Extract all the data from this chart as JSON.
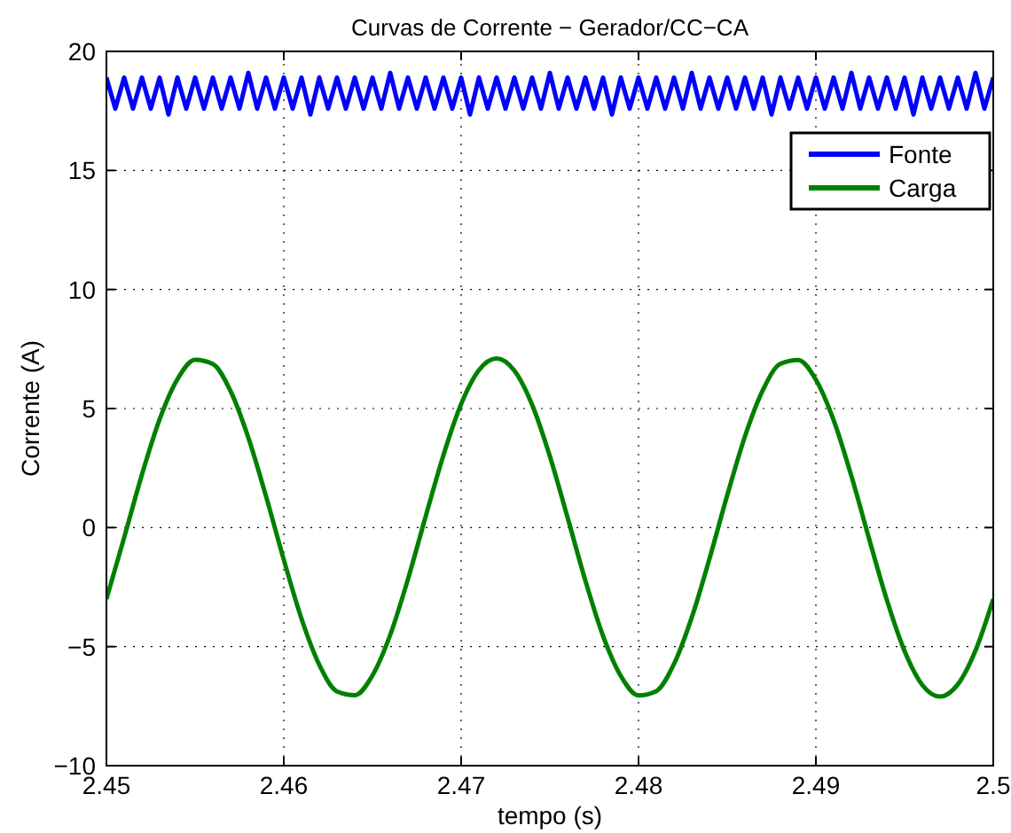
{
  "chart_data": {
    "type": "line",
    "title": "Curvas de Corrente − Gerador/CC−CA",
    "xlabel": "tempo (s)",
    "ylabel": "Corrente (A)",
    "xlim": [
      2.45,
      2.5
    ],
    "xticks": [
      2.45,
      2.46,
      2.47,
      2.48,
      2.49,
      2.5
    ],
    "ylim": [
      -10,
      20
    ],
    "yticks": [
      -10,
      -5,
      0,
      5,
      10,
      15,
      20
    ],
    "grid": true,
    "legend": "top right",
    "series": [
      {
        "name": "Fonte",
        "color": "#0000ff",
        "x": [
          2.45,
          2.4505,
          2.451,
          2.4515,
          2.452,
          2.4525,
          2.453,
          2.4535,
          2.454,
          2.4545,
          2.455,
          2.4555,
          2.456,
          2.4565,
          2.457,
          2.4575,
          2.458,
          2.4585,
          2.459,
          2.4595,
          2.46,
          2.4605,
          2.461,
          2.4615,
          2.462,
          2.4625,
          2.463,
          2.4635,
          2.464,
          2.4645,
          2.465,
          2.4655,
          2.466,
          2.4665,
          2.467,
          2.4675,
          2.468,
          2.4685,
          2.469,
          2.4695,
          2.47,
          2.4705,
          2.471,
          2.4715,
          2.472,
          2.4725,
          2.473,
          2.4735,
          2.474,
          2.4745,
          2.475,
          2.4755,
          2.476,
          2.4765,
          2.477,
          2.4775,
          2.478,
          2.4785,
          2.479,
          2.4795,
          2.48,
          2.4805,
          2.481,
          2.4815,
          2.482,
          2.4825,
          2.483,
          2.4835,
          2.484,
          2.4845,
          2.485,
          2.4855,
          2.486,
          2.4865,
          2.487,
          2.4875,
          2.488,
          2.4885,
          2.489,
          2.4895,
          2.49,
          2.4905,
          2.491,
          2.4915,
          2.492,
          2.4925,
          2.493,
          2.4935,
          2.494,
          2.4945,
          2.495,
          2.4955,
          2.496,
          2.4965,
          2.497,
          2.4975,
          2.498,
          2.4985,
          2.499,
          2.4995,
          2.5
        ],
        "values": [
          18.9,
          17.6,
          18.9,
          17.6,
          18.9,
          17.6,
          18.9,
          17.35,
          18.9,
          17.6,
          18.9,
          17.6,
          18.9,
          17.6,
          18.9,
          17.6,
          19.1,
          17.6,
          18.9,
          17.6,
          18.9,
          17.6,
          18.9,
          17.35,
          18.9,
          17.6,
          18.9,
          17.6,
          18.9,
          17.6,
          18.9,
          17.6,
          19.1,
          17.6,
          18.9,
          17.6,
          18.9,
          17.6,
          18.9,
          17.6,
          18.9,
          17.35,
          18.9,
          17.6,
          18.9,
          17.6,
          18.9,
          17.6,
          18.9,
          17.6,
          19.1,
          17.6,
          18.9,
          17.6,
          18.9,
          17.6,
          18.9,
          17.35,
          18.9,
          17.6,
          18.9,
          17.6,
          18.9,
          17.6,
          18.9,
          17.6,
          19.1,
          17.6,
          18.9,
          17.6,
          18.9,
          17.6,
          18.9,
          17.6,
          18.9,
          17.35,
          18.9,
          17.6,
          18.9,
          17.6,
          18.9,
          17.6,
          18.9,
          17.6,
          19.1,
          17.6,
          18.9,
          17.6,
          18.9,
          17.6,
          18.9,
          17.35,
          18.9,
          17.6,
          18.9,
          17.6,
          18.9,
          17.6,
          19.1,
          17.6,
          18.9
        ]
      },
      {
        "name": "Carga",
        "color": "#008000",
        "x": [
          2.45,
          2.451,
          2.452,
          2.453,
          2.454,
          2.455,
          2.456,
          2.457,
          2.458,
          2.459,
          2.46,
          2.461,
          2.462,
          2.463,
          2.464,
          2.465,
          2.466,
          2.467,
          2.468,
          2.469,
          2.47,
          2.471,
          2.472,
          2.473,
          2.474,
          2.475,
          2.476,
          2.477,
          2.478,
          2.479,
          2.48,
          2.481,
          2.482,
          2.483,
          2.484,
          2.485,
          2.486,
          2.487,
          2.488,
          2.489,
          2.49,
          2.491,
          2.492,
          2.493,
          2.494,
          2.495,
          2.496,
          2.497,
          2.498,
          2.499,
          2.5
        ],
        "values": [
          -3.0,
          -0.42,
          2.22,
          4.55,
          6.23,
          7.05,
          6.87,
          5.73,
          3.78,
          1.31,
          -1.35,
          -3.83,
          -5.76,
          -6.88,
          -7.04,
          -6.21,
          -4.51,
          -2.17,
          0.47,
          3.04,
          5.19,
          6.61,
          7.1,
          6.59,
          5.16,
          3.0,
          0.42,
          -2.22,
          -4.55,
          -6.23,
          -7.05,
          -6.87,
          -5.73,
          -3.78,
          -1.31,
          1.35,
          3.83,
          5.76,
          6.88,
          7.04,
          6.21,
          4.51,
          2.17,
          -0.47,
          -3.04,
          -5.19,
          -6.61,
          -7.1,
          -6.59,
          -5.16,
          -3.0
        ]
      }
    ]
  }
}
